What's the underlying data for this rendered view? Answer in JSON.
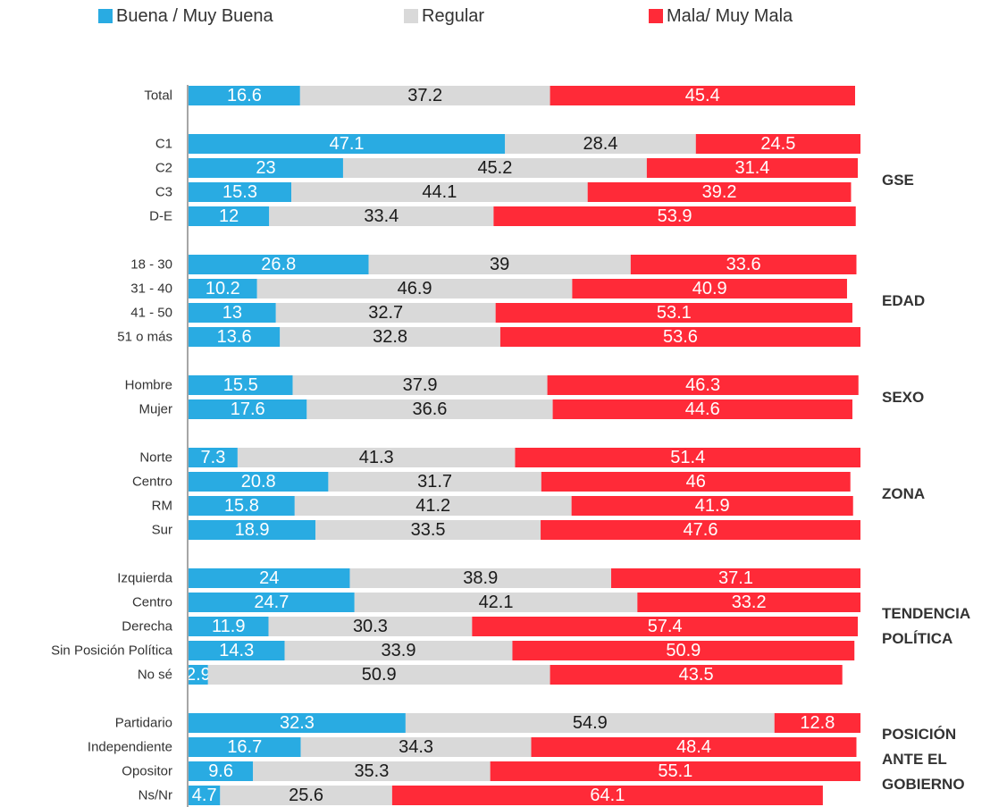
{
  "chart_data": {
    "type": "stacked_bar_horizontal",
    "categories": [
      "Total",
      null,
      "C1",
      "C2",
      "C3",
      "D-E",
      null,
      "18 - 30",
      "31 - 40",
      "41 - 50",
      "51 o más",
      null,
      "Hombre",
      "Mujer",
      null,
      "Norte",
      "Centro",
      "RM",
      "Sur",
      null,
      "Izquierda",
      "Centro",
      "Derecha",
      "Sin Posición Política",
      "No sé",
      null,
      "Partidario",
      "Independiente",
      "Opositor",
      "Ns/Nr"
    ],
    "series": [
      {
        "name": "Buena / Muy Buena",
        "color": "#29abe2",
        "label_color": "#ffffff",
        "values": [
          16.6,
          null,
          47.1,
          23,
          15.3,
          12,
          null,
          26.8,
          10.2,
          13,
          13.6,
          null,
          15.5,
          17.6,
          null,
          7.3,
          20.8,
          15.8,
          18.9,
          null,
          24,
          24.7,
          11.9,
          14.3,
          2.9,
          null,
          32.3,
          16.7,
          9.6,
          4.7
        ]
      },
      {
        "name": "Regular",
        "color": "#d9d9d9",
        "label_color": "#1a1a1a",
        "values": [
          37.2,
          null,
          28.4,
          45.2,
          44.1,
          33.4,
          null,
          39,
          46.9,
          32.7,
          32.8,
          null,
          37.9,
          36.6,
          null,
          41.3,
          31.7,
          41.2,
          33.5,
          null,
          38.9,
          42.1,
          30.3,
          33.9,
          50.9,
          null,
          54.9,
          34.3,
          35.3,
          25.6
        ]
      },
      {
        "name": "Mala/ Muy Mala",
        "color": "#ff2a38",
        "label_color": "#ffffff",
        "values": [
          45.4,
          null,
          24.5,
          31.4,
          39.2,
          53.9,
          null,
          33.6,
          40.9,
          53.1,
          53.6,
          null,
          46.3,
          44.6,
          null,
          51.4,
          46,
          41.9,
          47.6,
          null,
          37.1,
          33.2,
          57.4,
          50.9,
          43.5,
          null,
          12.8,
          48.4,
          55.1,
          64.1
        ]
      }
    ],
    "annotations": [
      "GSE",
      "EDAD",
      "SEXO",
      "ZONA",
      "TENDENCIA POLÍTICA",
      "POSICIÓN ANTE EL GOBIERNO"
    ],
    "xlim": [
      0,
      100
    ]
  }
}
